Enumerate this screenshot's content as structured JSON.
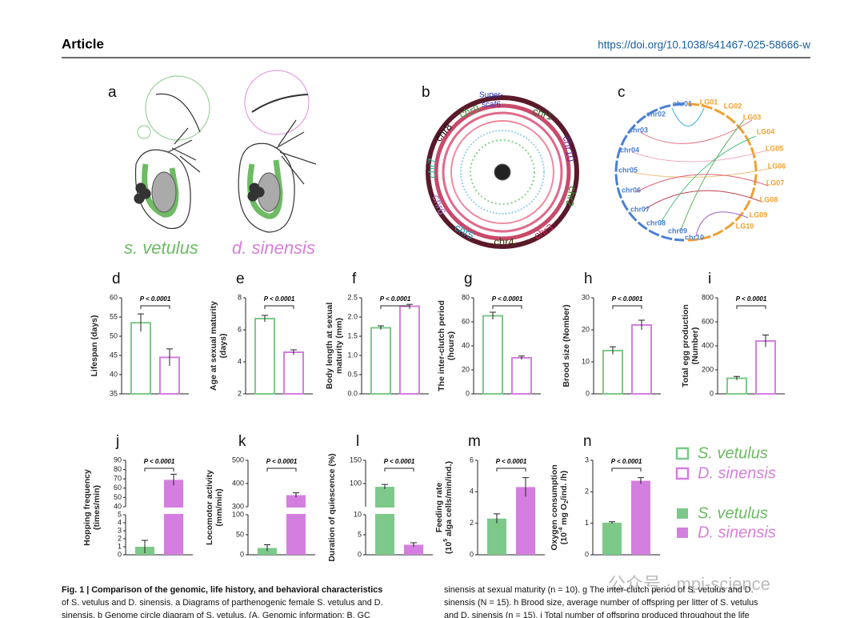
{
  "header": {
    "title": "Article",
    "doi": "https://doi.org/10.1038/s41467-025-58666-w"
  },
  "panel_a": {
    "letter": "a",
    "species": [
      {
        "text": "s. vetulus",
        "color": "#6dbb63"
      },
      {
        "text": "d. sinensis",
        "color": "#d77fd9"
      }
    ]
  },
  "panel_b": {
    "letter": "b",
    "labels": [
      {
        "text": "Super-",
        "color": "#2a33b8"
      },
      {
        "text": "scaf6",
        "color": "#2a33b8"
      },
      {
        "text": "chr1",
        "color": "#2f5f1f"
      },
      {
        "text": "chr10",
        "color": "#6a2a9a"
      },
      {
        "text": "chr2",
        "color": "#2a8a2a"
      },
      {
        "text": "chr3",
        "color": "#d02a5a"
      },
      {
        "text": "chr4",
        "color": "#3a3a10"
      },
      {
        "text": "chr5",
        "color": "#1aa0c0"
      },
      {
        "text": "chr6",
        "color": "#a070d0"
      },
      {
        "text": "chr7",
        "color": "#30c0a0"
      },
      {
        "text": "chr8",
        "color": "#111111"
      },
      {
        "text": "chr9",
        "color": "#40a040"
      }
    ]
  },
  "panel_c": {
    "letter": "c",
    "left": [
      "chr01",
      "chr02",
      "chr03",
      "chr04",
      "chr05",
      "chr06",
      "chr07",
      "chr08",
      "chr09",
      "chr10"
    ],
    "right": [
      "LG01",
      "LG02",
      "LG03",
      "LG04",
      "LG05",
      "LG06",
      "LG07",
      "LG08",
      "LG09",
      "LG10"
    ],
    "left_color": "#4a7fd4",
    "right_color": "#f0a030"
  },
  "panels": [
    {
      "letter": "d",
      "ylabel": [
        "Lifespan (days)"
      ],
      "style": "outline",
      "segments": [
        {
          "ylim": [
            35,
            60
          ],
          "yticks": [
            35,
            40,
            45,
            50,
            55,
            60
          ]
        }
      ],
      "values": [
        53.5,
        44.5
      ],
      "errors": [
        2.3,
        2.2
      ],
      "pvalue": "P < 0.0001"
    },
    {
      "letter": "e",
      "ylabel": [
        "Age at sexual maturity",
        "(days)"
      ],
      "style": "outline",
      "segments": [
        {
          "ylim": [
            2,
            8
          ],
          "yticks": [
            2,
            4,
            6,
            8
          ]
        }
      ],
      "values": [
        6.7,
        4.6
      ],
      "errors": [
        0.2,
        0.15
      ],
      "pvalue": "P < 0.0001"
    },
    {
      "letter": "f",
      "ylabel": [
        "Body length at sexual",
        "maturity (mm)"
      ],
      "style": "outline",
      "segments": [
        {
          "ylim": [
            0,
            2.5
          ],
          "yticks": [
            {
              "value": 0,
              "label": "0.0"
            },
            0.5,
            {
              "value": 1,
              "label": "1.0"
            },
            1.5,
            {
              "value": 2,
              "label": "2.0"
            },
            2.5
          ]
        }
      ],
      "values": [
        1.72,
        2.28
      ],
      "errors": [
        0.05,
        0.05
      ],
      "pvalue": "P < 0.0001"
    },
    {
      "letter": "g",
      "ylabel": [
        "The inter-clutch period",
        "(hours)"
      ],
      "style": "outline",
      "segments": [
        {
          "ylim": [
            0,
            80
          ],
          "yticks": [
            0,
            20,
            40,
            60,
            80
          ]
        }
      ],
      "values": [
        65,
        30
      ],
      "errors": [
        3,
        1.5
      ],
      "pvalue": "P < 0.0001"
    },
    {
      "letter": "h",
      "ylabel": [
        "Brood size (Nomber)"
      ],
      "style": "outline",
      "segments": [
        {
          "ylim": [
            0,
            30
          ],
          "yticks": [
            0,
            10,
            20,
            30
          ]
        }
      ],
      "values": [
        13.5,
        21.5
      ],
      "errors": [
        1.2,
        1.5
      ],
      "pvalue": "P < 0.0001"
    },
    {
      "letter": "i",
      "ylabel": [
        "Total egg production",
        "(Number)"
      ],
      "style": "outline",
      "segments": [
        {
          "ylim": [
            0,
            800
          ],
          "yticks": [
            0,
            200,
            400,
            600,
            800
          ]
        }
      ],
      "values": [
        130,
        440
      ],
      "errors": [
        15,
        50
      ],
      "pvalue": "P < 0.0001"
    },
    {
      "letter": "j",
      "ylabel": [
        "Hopping frequency",
        "(times/min)"
      ],
      "style": "filled",
      "segments": [
        {
          "ylim": [
            0,
            5
          ],
          "yticks": [
            0,
            1,
            2,
            3,
            4,
            5
          ]
        },
        {
          "ylim": [
            40,
            90
          ],
          "yticks": [
            40,
            50,
            60,
            70,
            80,
            90
          ]
        }
      ],
      "values": [
        1,
        69
      ],
      "errors": [
        0.8,
        6
      ],
      "pvalue": "P < 0.0001"
    },
    {
      "letter": "k",
      "ylabel": [
        "Locomotor activity",
        "(mm/min)"
      ],
      "style": "filled",
      "segments": [
        {
          "ylim": [
            0,
            100
          ],
          "yticks": [
            0,
            50,
            100
          ]
        },
        {
          "ylim": [
            300,
            500
          ],
          "yticks": [
            300,
            400,
            500
          ]
        }
      ],
      "values": [
        17,
        350
      ],
      "errors": [
        8,
        10
      ],
      "pvalue": "P < 0.0001"
    },
    {
      "letter": "l",
      "ylabel": [
        "Duration of quiescence (%)"
      ],
      "style": "filled",
      "segments": [
        {
          "ylim": [
            0,
            10
          ],
          "yticks": [
            0,
            5,
            10
          ]
        },
        {
          "ylim": [
            50,
            150
          ],
          "yticks": [
            100,
            150
          ]
        }
      ],
      "values": [
        93,
        2.5
      ],
      "errors": [
        5,
        0.5
      ],
      "pvalue": "P < 0.0001"
    },
    {
      "letter": "m",
      "ylabel": [
        "Feeding rate",
        [
          {
            "text": "(10"
          },
          {
            "text": "5",
            "sup": true
          },
          {
            "text": " alga cells/min/ind.)"
          }
        ]
      ],
      "style": "filled",
      "segments": [
        {
          "ylim": [
            0,
            6
          ],
          "yticks": [
            0,
            2,
            4,
            6
          ]
        }
      ],
      "values": [
        2.3,
        4.3
      ],
      "errors": [
        0.3,
        0.6
      ],
      "pvalue": "P < 0.0001"
    },
    {
      "letter": "n",
      "ylabel": [
        "Oxygen consumption",
        [
          {
            "text": "(10"
          },
          {
            "text": "-4",
            "sup": true
          },
          {
            "text": " mg O"
          },
          {
            "text": "2",
            "sub": true
          },
          {
            "text": "/ind. /h)"
          }
        ]
      ],
      "style": "filled",
      "segments": [
        {
          "ylim": [
            0,
            3
          ],
          "yticks": [
            0,
            1,
            2,
            3
          ]
        }
      ],
      "values": [
        1.02,
        2.35
      ],
      "errors": [
        0.03,
        0.1
      ],
      "pvalue": "P < 0.0001"
    }
  ],
  "colors": [
    "#7dc98a",
    "#d47fdf"
  ],
  "legend": {
    "outline": [
      "S. vetulus",
      "D. sinensis"
    ],
    "filled": [
      "S. vetulus",
      "D. sinensis"
    ]
  },
  "caption": {
    "left": [
      "Fig. 1 | Comparison of the genomic, life history, and behavioral characteristics",
      "of S. vetulus and D. sinensis. a Diagrams of parthenogenic female S. vetulus and D.",
      "sinensis. b Genome circle diagram of S. vetulus. (A. Genomic information; B. GC"
    ],
    "right": [
      "sinensis at sexual maturity (n = 10). g The inter-clutch period of S. vetulus and D.",
      "sinensis (N = 15). h Brood size, average number of offspring per litter of S. vetulus",
      "and D. sinensis (n = 15). i Total number of offspring produced throughout the life"
    ]
  },
  "watermark": "公众号 · mpi-science"
}
